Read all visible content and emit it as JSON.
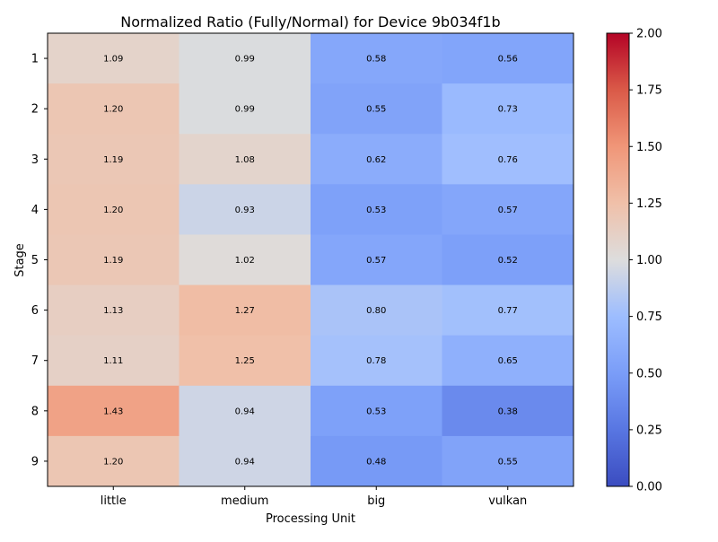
{
  "chart_data": {
    "type": "heatmap",
    "title": "Normalized Ratio (Fully/Normal) for Device 9b034f1b",
    "xlabel": "Processing Unit",
    "ylabel": "Stage",
    "x_categories": [
      "little",
      "medium",
      "big",
      "vulkan"
    ],
    "y_categories": [
      "1",
      "2",
      "3",
      "4",
      "5",
      "6",
      "7",
      "8",
      "9"
    ],
    "values": [
      [
        1.09,
        0.99,
        0.58,
        0.56
      ],
      [
        1.2,
        0.99,
        0.55,
        0.73
      ],
      [
        1.19,
        1.08,
        0.62,
        0.76
      ],
      [
        1.2,
        0.93,
        0.53,
        0.57
      ],
      [
        1.19,
        1.02,
        0.57,
        0.52
      ],
      [
        1.13,
        1.27,
        0.8,
        0.77
      ],
      [
        1.11,
        1.25,
        0.78,
        0.65
      ],
      [
        1.43,
        0.94,
        0.53,
        0.38
      ],
      [
        1.2,
        0.94,
        0.48,
        0.55
      ]
    ],
    "value_labels": [
      [
        "1.09",
        "0.99",
        "0.58",
        "0.56"
      ],
      [
        "1.20",
        "0.99",
        "0.55",
        "0.73"
      ],
      [
        "1.19",
        "1.08",
        "0.62",
        "0.76"
      ],
      [
        "1.20",
        "0.93",
        "0.53",
        "0.57"
      ],
      [
        "1.19",
        "1.02",
        "0.57",
        "0.52"
      ],
      [
        "1.13",
        "1.27",
        "0.80",
        "0.77"
      ],
      [
        "1.11",
        "1.25",
        "0.78",
        "0.65"
      ],
      [
        "1.43",
        "0.94",
        "0.53",
        "0.38"
      ],
      [
        "1.20",
        "0.94",
        "0.48",
        "0.55"
      ]
    ],
    "colorbar": {
      "colormap": "coolwarm",
      "vmin": 0.0,
      "vmax": 2.0,
      "ticks": [
        0.0,
        0.25,
        0.5,
        0.75,
        1.0,
        1.25,
        1.5,
        1.75,
        2.0
      ],
      "tick_labels": [
        "0.00",
        "0.25",
        "0.50",
        "0.75",
        "1.00",
        "1.25",
        "1.50",
        "1.75",
        "2.00"
      ]
    },
    "grid": false,
    "legend": "colorbar-right"
  }
}
